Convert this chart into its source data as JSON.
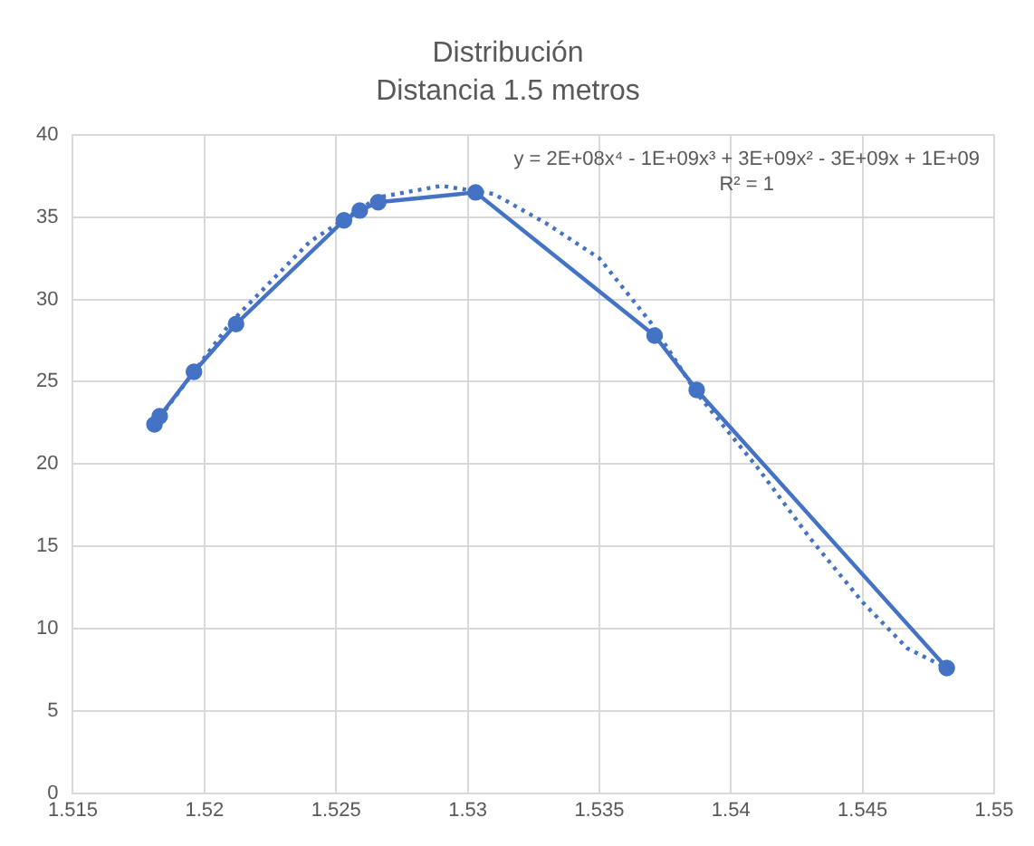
{
  "chart_data": {
    "type": "line",
    "title": "Distribución",
    "subtitle": "Distancia 1.5 metros",
    "xlim": [
      1.515,
      1.55
    ],
    "xticks": [
      1.515,
      1.52,
      1.525,
      1.53,
      1.535,
      1.54,
      1.545,
      1.55
    ],
    "ylim": [
      0,
      40
    ],
    "yticks": [
      0,
      5,
      10,
      15,
      20,
      25,
      30,
      35,
      40
    ],
    "grid": true,
    "legend": false,
    "annotations": [
      "y = 2E+08x⁴ - 1E+09x³ + 3E+09x² - 3E+09x + 1E+09",
      "R² = 1"
    ],
    "series": [
      {
        "color": "#4472c4",
        "marker": "circle",
        "line_style": "solid",
        "x": [
          1.5181,
          1.5183,
          1.5196,
          1.5212,
          1.5253,
          1.5259,
          1.5266,
          1.5303,
          1.5371,
          1.5387,
          1.5482
        ],
        "values": [
          22.4,
          22.9,
          25.6,
          28.5,
          34.8,
          35.4,
          35.9,
          36.5,
          27.8,
          24.5,
          7.6
        ]
      },
      {
        "color": "#4472c4",
        "marker": "none",
        "line_style": "dotted",
        "x": [
          1.5181,
          1.521,
          1.524,
          1.5266,
          1.529,
          1.531,
          1.533,
          1.535,
          1.537,
          1.5387,
          1.541,
          1.543,
          1.545,
          1.5467,
          1.5482
        ],
        "values": [
          22.4,
          28.6,
          33.5,
          36.2,
          36.9,
          36.4,
          34.6,
          32.5,
          28.5,
          24.3,
          19.8,
          15.5,
          11.6,
          8.8,
          7.6
        ]
      }
    ]
  }
}
